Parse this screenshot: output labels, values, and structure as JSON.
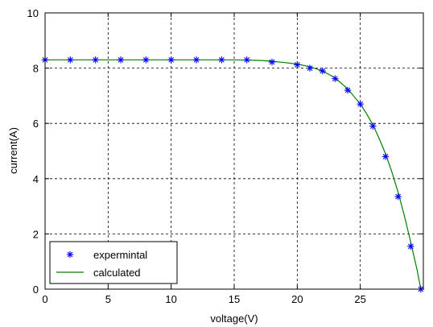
{
  "chart_data": {
    "type": "line",
    "xlabel": "voltage(V)",
    "ylabel": "current(A)",
    "xlim": [
      0,
      30
    ],
    "ylim": [
      0,
      10
    ],
    "x_ticks": [
      "0",
      "5",
      "10",
      "15",
      "20",
      "25"
    ],
    "y_ticks": [
      "0",
      "2",
      "4",
      "6",
      "8",
      "10"
    ],
    "x_tick_values": [
      0,
      5,
      10,
      15,
      20,
      25
    ],
    "y_tick_values": [
      0,
      2,
      4,
      6,
      8,
      10
    ],
    "grid": true,
    "legend_position": "bottom-left",
    "series": [
      {
        "name": "expermintal",
        "style": "markers",
        "marker": "asterisk",
        "color": "#0000ff",
        "x": [
          0,
          2,
          4,
          6,
          8,
          10,
          12,
          14,
          16,
          18,
          20,
          21,
          22,
          23,
          24,
          25,
          26,
          27,
          28,
          29,
          29.8
        ],
        "y": [
          8.3,
          8.3,
          8.3,
          8.3,
          8.3,
          8.3,
          8.3,
          8.3,
          8.3,
          8.22,
          8.12,
          8.0,
          7.9,
          7.62,
          7.2,
          6.7,
          5.9,
          4.8,
          3.35,
          1.55,
          0.0
        ]
      },
      {
        "name": "calculated",
        "style": "line",
        "color": "#007f00",
        "x": [
          0,
          5,
          10,
          15,
          17,
          18,
          19,
          20,
          21,
          22,
          23,
          24,
          25,
          25.5,
          26,
          26.5,
          27,
          27.5,
          28,
          28.5,
          29,
          29.5,
          29.8
        ],
        "y": [
          8.3,
          8.3,
          8.3,
          8.3,
          8.28,
          8.25,
          8.2,
          8.15,
          8.05,
          7.9,
          7.65,
          7.25,
          6.7,
          6.35,
          5.95,
          5.45,
          4.9,
          4.25,
          3.5,
          2.65,
          1.7,
          0.7,
          0.0
        ]
      }
    ]
  }
}
